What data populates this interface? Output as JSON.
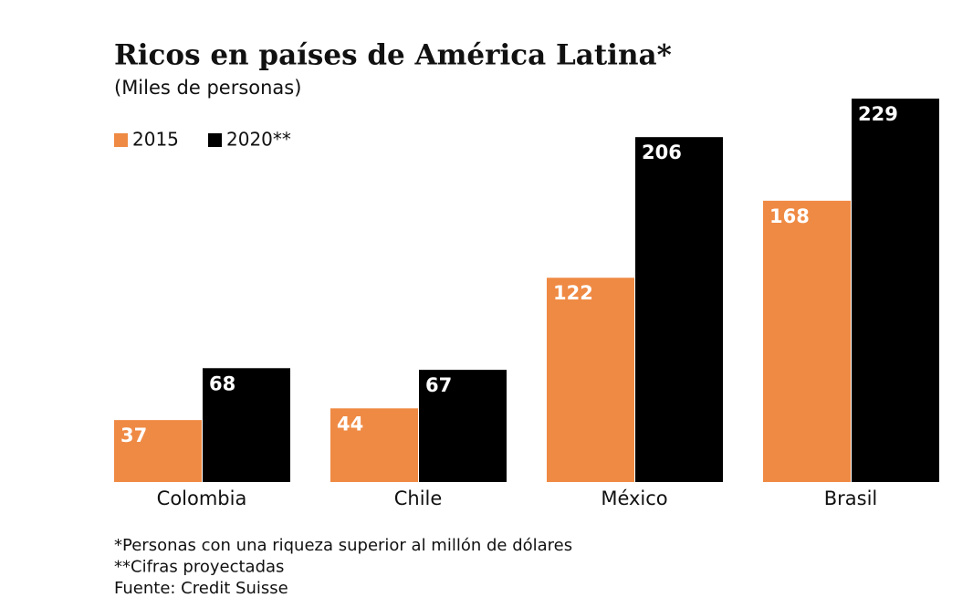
{
  "chart_data": {
    "type": "bar",
    "title": "Ricos en países de América Latina*",
    "subtitle": "(Miles de personas)",
    "categories": [
      "Colombia",
      "Chile",
      "México",
      "Brasil"
    ],
    "series": [
      {
        "name": "2015",
        "color": "#ef8a44",
        "values": [
          37,
          44,
          122,
          168
        ]
      },
      {
        "name": "2020**",
        "color": "#000000",
        "values": [
          68,
          67,
          206,
          229
        ]
      }
    ],
    "footnotes": [
      "*Personas con una riqueza superior al millón de dólares",
      "**Cifras proyectadas",
      "Fuente: Credit Suisse"
    ]
  }
}
